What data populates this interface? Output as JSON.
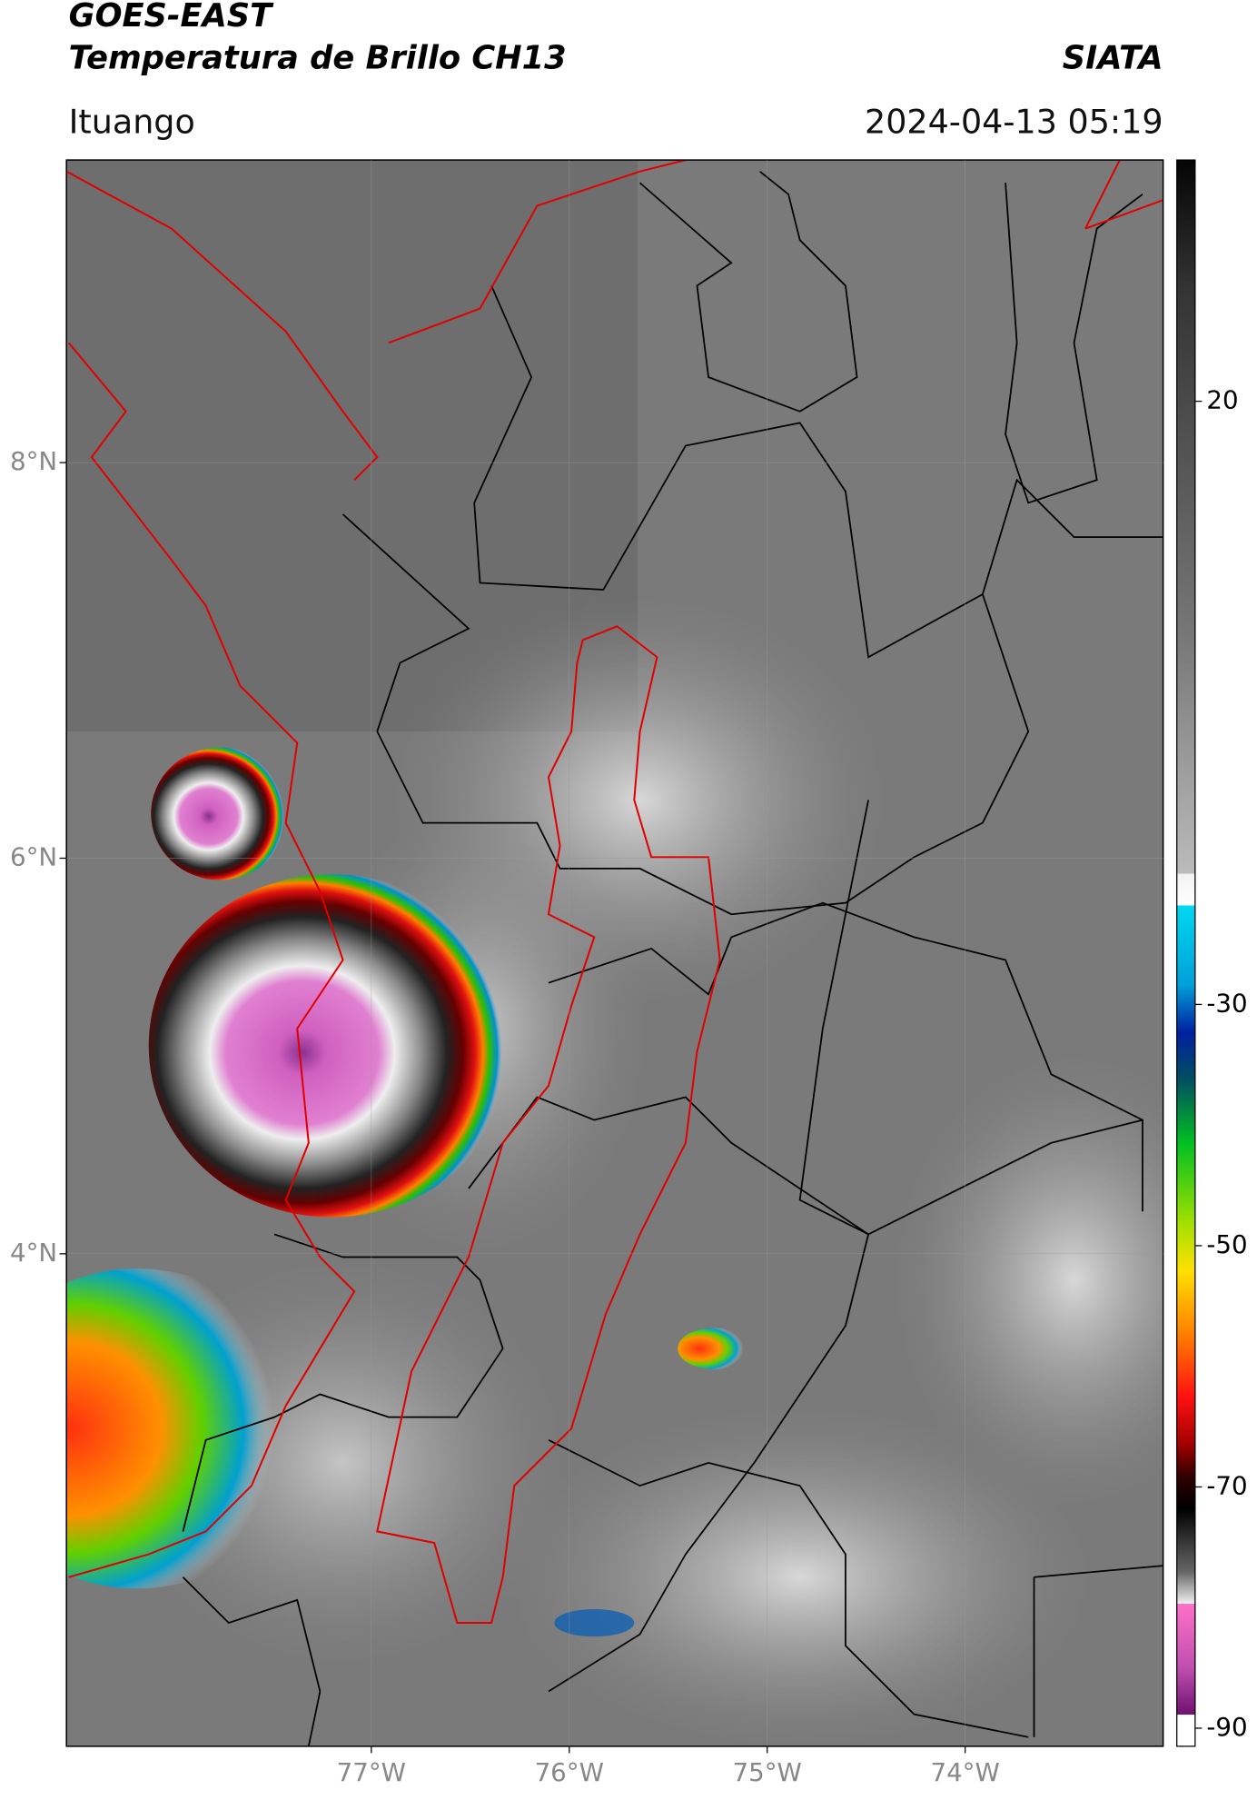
{
  "header": {
    "title": "GOES-EAST",
    "subtitle": "Temperatura de Brillo CH13",
    "agency": "SIATA",
    "location": "Ituango",
    "datetime": "2024-04-13 05:19"
  },
  "map": {
    "lon_range": [
      -78.54,
      -73.0
    ],
    "lat_range": [
      1.51,
      9.53
    ],
    "lat_ticks": [
      {
        "value": 8,
        "label": "8°N"
      },
      {
        "value": 6,
        "label": "6°N"
      },
      {
        "value": 4,
        "label": "4°N"
      }
    ],
    "lon_ticks": [
      {
        "value": -77,
        "label": "77°W"
      },
      {
        "value": -76,
        "label": "76°W"
      },
      {
        "value": -75,
        "label": "75°W"
      },
      {
        "value": -74,
        "label": "74°W"
      }
    ]
  },
  "colorbar": {
    "range": [
      -91.5,
      40
    ],
    "ticks": [
      20,
      -30,
      -50,
      -70,
      -90
    ]
  }
}
